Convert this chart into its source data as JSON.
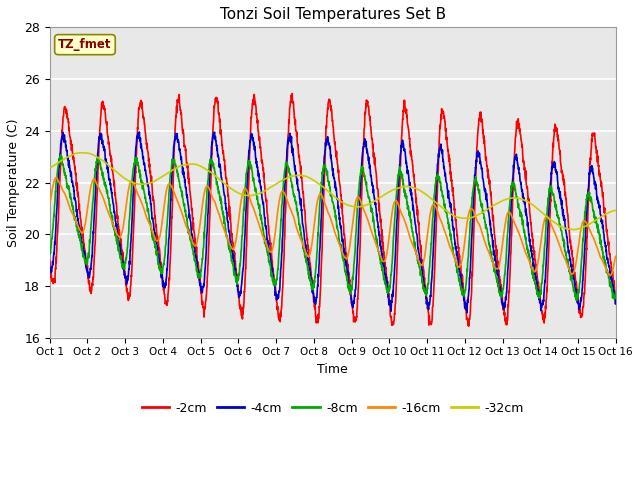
{
  "title": "Tonzi Soil Temperatures Set B",
  "xlabel": "Time",
  "ylabel": "Soil Temperature (C)",
  "ylim": [
    16,
    28
  ],
  "xlim": [
    0,
    15
  ],
  "xtick_labels": [
    "Oct 1",
    "Oct 2",
    "Oct 3",
    "Oct 4",
    "Oct 5",
    "Oct 6",
    "Oct 7",
    "Oct 8",
    "Oct 9",
    "Oct 10",
    "Oct 11",
    "Oct 12",
    "Oct 13",
    "Oct 14",
    "Oct 15",
    "Oct 16"
  ],
  "ytick_values": [
    16,
    18,
    20,
    22,
    24,
    26,
    28
  ],
  "fig_facecolor": "#ffffff",
  "plot_facecolor": "#e8e8e8",
  "annotation_label": "TZ_fmet",
  "annotation_color": "#880000",
  "annotation_bg": "#ffffcc",
  "annotation_border": "#888800",
  "series_colors": {
    "-2cm": "#ff0000",
    "-4cm": "#0000cc",
    "-8cm": "#00aa00",
    "-16cm": "#ff8800",
    "-32cm": "#cccc00"
  },
  "series_linewidth": 1.2,
  "legend_entries": [
    "-2cm",
    "-4cm",
    "-8cm",
    "-16cm",
    "-32cm"
  ]
}
